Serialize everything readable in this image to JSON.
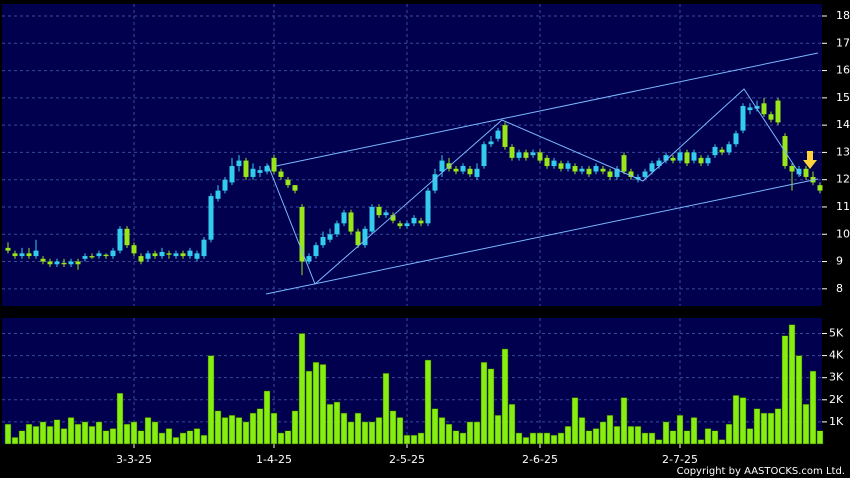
{
  "chart_data": {
    "type": "candlestick",
    "categories": [
      null,
      null,
      null,
      null,
      null,
      null,
      null,
      null,
      null,
      null,
      null,
      null,
      null,
      null,
      null,
      null,
      null,
      null,
      "3-3-25",
      null,
      null,
      null,
      null,
      null,
      null,
      null,
      null,
      null,
      null,
      null,
      null,
      null,
      null,
      null,
      null,
      null,
      null,
      null,
      "1-4-25",
      null,
      null,
      null,
      null,
      null,
      null,
      null,
      null,
      null,
      null,
      null,
      null,
      null,
      null,
      null,
      null,
      null,
      null,
      "2-5-25",
      null,
      null,
      null,
      null,
      null,
      null,
      null,
      null,
      null,
      null,
      null,
      null,
      null,
      null,
      null,
      null,
      null,
      null,
      "2-6-25",
      null,
      null,
      null,
      null,
      null,
      null,
      null,
      null,
      null,
      null,
      null,
      null,
      null,
      null,
      null,
      null,
      null,
      null,
      null,
      "2-7-25",
      null,
      null,
      null,
      null,
      null,
      null,
      null,
      null,
      null,
      null,
      null,
      null,
      null,
      null,
      null,
      null,
      null,
      null,
      null,
      null
    ],
    "open": [
      9.5,
      9.3,
      9.2,
      9.3,
      9.2,
      9.1,
      9.0,
      8.9,
      8.95,
      8.9,
      9.0,
      9.1,
      9.2,
      9.2,
      9.25,
      9.2,
      9.4,
      10.2,
      9.6,
      9.2,
      9.1,
      9.3,
      9.2,
      9.3,
      9.2,
      9.3,
      9.2,
      9.1,
      9.2,
      9.8,
      11.3,
      11.6,
      11.9,
      12.5,
      12.7,
      12.1,
      12.25,
      12.3,
      12.8,
      12.3,
      12.0,
      11.8,
      11.0,
      9.0,
      9.2,
      9.6,
      9.8,
      10.0,
      10.4,
      10.8,
      10.1,
      9.6,
      10.1,
      11.0,
      10.7,
      10.7,
      10.4,
      10.3,
      10.4,
      10.5,
      10.4,
      11.6,
      12.3,
      12.6,
      12.4,
      12.3,
      12.4,
      12.1,
      12.5,
      13.3,
      13.5,
      14.0,
      13.2,
      12.8,
      13.0,
      12.9,
      13.0,
      12.8,
      12.5,
      12.6,
      12.4,
      12.5,
      12.3,
      12.4,
      12.3,
      12.4,
      12.3,
      12.1,
      12.9,
      12.3,
      12.0,
      12.1,
      12.3,
      12.5,
      12.7,
      12.8,
      12.7,
      13.0,
      12.7,
      12.8,
      12.6,
      12.9,
      13.1,
      13.0,
      13.3,
      13.8,
      14.55,
      14.6,
      14.8,
      14.4,
      14.9,
      13.6,
      12.5,
      12.2,
      12.4,
      12.1,
      11.8
    ],
    "high": [
      9.7,
      9.4,
      9.5,
      9.5,
      9.8,
      9.2,
      9.1,
      9.1,
      9.1,
      9.1,
      9.1,
      9.3,
      9.3,
      9.4,
      9.3,
      9.5,
      10.3,
      10.3,
      9.7,
      9.3,
      9.4,
      9.4,
      9.5,
      9.4,
      9.4,
      9.4,
      9.5,
      9.4,
      9.9,
      11.5,
      11.8,
      12.1,
      12.8,
      12.9,
      12.8,
      12.6,
      12.5,
      12.6,
      12.9,
      12.4,
      12.1,
      11.8,
      11.1,
      9.3,
      9.7,
      10.1,
      10.2,
      10.5,
      10.9,
      10.9,
      10.2,
      10.3,
      11.1,
      11.1,
      10.9,
      10.8,
      10.5,
      10.5,
      10.7,
      10.6,
      11.7,
      12.4,
      12.9,
      12.8,
      12.5,
      12.6,
      12.5,
      12.6,
      13.4,
      13.6,
      13.9,
      14.1,
      13.3,
      13.1,
      13.1,
      13.1,
      13.1,
      12.9,
      12.8,
      12.7,
      12.7,
      12.6,
      12.5,
      12.5,
      12.6,
      12.5,
      12.4,
      12.5,
      13.0,
      12.4,
      12.2,
      12.4,
      12.7,
      12.8,
      13.0,
      12.9,
      13.1,
      13.1,
      13.1,
      12.9,
      12.9,
      13.3,
      13.2,
      13.4,
      13.8,
      14.8,
      14.8,
      14.9,
      15.0,
      14.5,
      15.0,
      13.7,
      12.6,
      12.5,
      12.5,
      12.3,
      11.9
    ],
    "low": [
      9.3,
      9.1,
      9.1,
      9.1,
      9.1,
      8.9,
      8.8,
      8.8,
      8.8,
      8.8,
      8.7,
      9.0,
      9.1,
      9.1,
      9.1,
      9.1,
      9.3,
      9.5,
      9.2,
      8.9,
      9.0,
      9.1,
      9.1,
      9.1,
      9.1,
      9.1,
      9.1,
      9.0,
      9.1,
      9.7,
      11.2,
      11.5,
      11.8,
      12.3,
      12.0,
      12.0,
      12.1,
      12.2,
      12.2,
      12.0,
      11.7,
      11.5,
      8.5,
      8.9,
      9.1,
      9.5,
      9.7,
      9.9,
      10.3,
      10.0,
      9.5,
      9.5,
      10.0,
      10.6,
      10.6,
      10.4,
      10.2,
      10.2,
      10.3,
      10.3,
      10.3,
      11.5,
      12.1,
      12.3,
      12.2,
      12.2,
      12.1,
      12.0,
      12.4,
      13.2,
      13.4,
      13.1,
      12.7,
      12.7,
      12.7,
      12.8,
      12.6,
      12.4,
      12.4,
      12.3,
      12.3,
      12.2,
      12.2,
      12.1,
      12.2,
      12.2,
      12.0,
      12.0,
      12.2,
      12.0,
      11.9,
      12.0,
      12.2,
      12.4,
      12.6,
      12.6,
      12.6,
      12.5,
      12.6,
      12.5,
      12.5,
      12.8,
      12.9,
      12.9,
      13.2,
      13.7,
      14.4,
      14.5,
      14.3,
      14.1,
      14.0,
      12.4,
      11.6,
      12.1,
      12.0,
      11.8,
      11.5
    ],
    "close": [
      9.4,
      9.2,
      9.3,
      9.2,
      9.4,
      9.0,
      8.9,
      9.0,
      8.9,
      9.0,
      8.9,
      9.2,
      9.15,
      9.3,
      9.2,
      9.4,
      10.2,
      9.6,
      9.3,
      9.0,
      9.3,
      9.2,
      9.35,
      9.25,
      9.3,
      9.2,
      9.4,
      9.3,
      9.8,
      11.4,
      11.6,
      12.0,
      12.5,
      12.7,
      12.1,
      12.4,
      12.35,
      12.5,
      12.3,
      12.1,
      11.8,
      11.6,
      9.0,
      9.2,
      9.6,
      9.9,
      10.0,
      10.4,
      10.8,
      10.1,
      9.6,
      10.2,
      11.0,
      10.7,
      10.8,
      10.5,
      10.3,
      10.4,
      10.6,
      10.4,
      11.6,
      12.2,
      12.7,
      12.4,
      12.3,
      12.5,
      12.2,
      12.4,
      13.3,
      13.4,
      13.8,
      13.2,
      12.8,
      13.0,
      12.8,
      13.0,
      12.7,
      12.5,
      12.7,
      12.4,
      12.6,
      12.3,
      12.4,
      12.2,
      12.5,
      12.3,
      12.1,
      12.4,
      12.3,
      12.1,
      12.1,
      12.3,
      12.6,
      12.7,
      12.9,
      12.7,
      13.0,
      12.6,
      13.0,
      12.6,
      12.8,
      13.2,
      13.0,
      13.3,
      13.7,
      14.7,
      14.65,
      14.7,
      14.4,
      14.2,
      14.1,
      12.5,
      12.3,
      12.4,
      12.1,
      11.9,
      11.6
    ],
    "up_color": "#33ccee",
    "down_color": "#99e61a",
    "ylim": [
      7.37,
      18.44
    ],
    "yticks": [
      8,
      9,
      10,
      11,
      12,
      13,
      14,
      15,
      16,
      17,
      18
    ],
    "grid": true,
    "volume": {
      "color": "#88ee11",
      "values": [
        900,
        300,
        600,
        900,
        800,
        1000,
        800,
        1100,
        700,
        1200,
        900,
        1000,
        800,
        1000,
        600,
        700,
        2300,
        900,
        1000,
        600,
        1200,
        1000,
        500,
        700,
        300,
        500,
        600,
        700,
        400,
        4000,
        1500,
        1200,
        1300,
        1200,
        1000,
        1400,
        1600,
        2400,
        1400,
        500,
        600,
        1500,
        5000,
        3300,
        3700,
        3600,
        1800,
        1900,
        1400,
        1000,
        1400,
        1000,
        1000,
        1200,
        3200,
        1500,
        1200,
        400,
        400,
        500,
        3800,
        1600,
        1200,
        900,
        600,
        500,
        1000,
        1000,
        3700,
        3400,
        1300,
        4300,
        1800,
        500,
        300,
        500,
        500,
        500,
        400,
        500,
        800,
        2100,
        1200,
        600,
        700,
        1000,
        1300,
        800,
        2100,
        800,
        800,
        500,
        500,
        200,
        1000,
        600,
        1300,
        600,
        1200,
        200,
        700,
        600,
        200,
        900,
        2200,
        2100,
        700,
        1600,
        1400,
        1400,
        1600,
        4900,
        5400,
        4000,
        1800,
        3300,
        600
      ],
      "ylim": [
        0,
        5700
      ],
      "yticks": [
        {
          "value": 1000,
          "label": "1K"
        },
        {
          "value": 2000,
          "label": "2K"
        },
        {
          "value": 3000,
          "label": "3K"
        },
        {
          "value": 4000,
          "label": "4K"
        },
        {
          "value": 5000,
          "label": "5K"
        }
      ]
    },
    "copyright": "Copyright by AASTOCKS.com Ltd."
  }
}
